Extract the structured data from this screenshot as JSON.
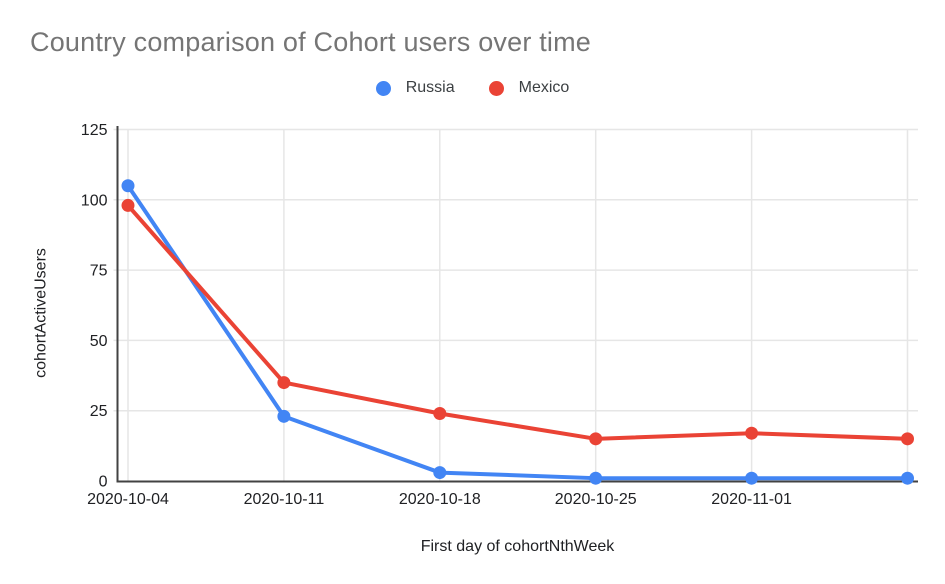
{
  "chart_data": {
    "type": "line",
    "title": "Country comparison of Cohort users over time",
    "xlabel": "First day of cohortNthWeek",
    "ylabel": "cohortActiveUsers",
    "categories": [
      "2020-10-04",
      "2020-10-11",
      "2020-10-18",
      "2020-10-25",
      "2020-11-01",
      ""
    ],
    "series": [
      {
        "name": "Russia",
        "color": "#4285F4",
        "values": [
          105,
          23,
          3,
          1,
          1,
          1
        ]
      },
      {
        "name": "Mexico",
        "color": "#EA4335",
        "values": [
          98,
          35,
          24,
          15,
          17,
          15
        ]
      }
    ],
    "ylim": [
      0,
      125
    ],
    "yticks": [
      0,
      25,
      50,
      75,
      100,
      125
    ],
    "grid": true,
    "legend_position": "top",
    "colors": {
      "title_text": "#757575",
      "axis_line": "#424242",
      "grid_line": "#e6e6e6",
      "tick_label": "#202124",
      "legend_label": "#3c4043"
    }
  }
}
